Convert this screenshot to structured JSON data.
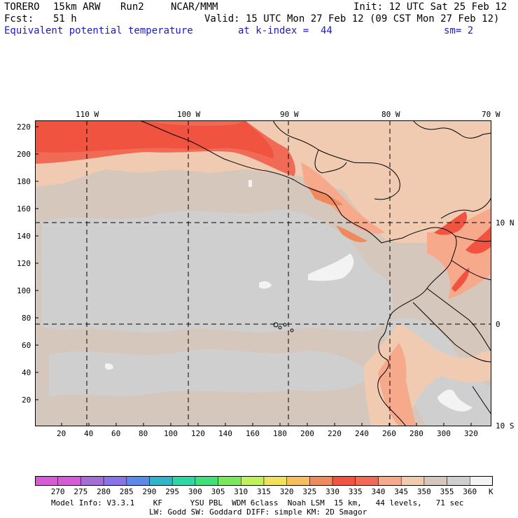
{
  "header": {
    "model": "TORERO",
    "resolution": "15km ARW",
    "run": "Run2",
    "org": "NCAR/MMM",
    "init": "Init: 12 UTC Sat 25 Feb 12",
    "fcst_label": "Fcst:",
    "fcst_value": "51 h",
    "valid": "Valid: 15 UTC Mon 27 Feb 12 (09 CST Mon 27 Feb 12)",
    "field": "Equivalent potential temperature",
    "level": "at k-index =  44",
    "smoothing": "sm= 2"
  },
  "map": {
    "lon_labels": [
      "110 W",
      "100 W",
      "90 W",
      "80 W",
      "70 W"
    ],
    "lat_labels": [
      "10 N",
      "0",
      "10 S"
    ],
    "x_ticks": [
      "20",
      "40",
      "60",
      "80",
      "100",
      "120",
      "140",
      "160",
      "180",
      "200",
      "220",
      "240",
      "260",
      "280",
      "300",
      "320"
    ],
    "y_ticks": [
      "220",
      "200",
      "180",
      "160",
      "140",
      "120",
      "100",
      "80",
      "60",
      "40",
      "20"
    ],
    "x_range": [
      0,
      333
    ],
    "y_range": [
      0,
      223
    ],
    "field_colors": {
      "c325": "#f08a5c",
      "c330": "#f0533f",
      "c335": "#f06a55",
      "c340": "#f7a98c",
      "c345": "#f0cbb2",
      "c350": "#d6c7bd",
      "c355": "#cfcfcf",
      "c360": "#f3f3f3"
    }
  },
  "colorbar": {
    "values": [
      "270",
      "275",
      "280",
      "285",
      "290",
      "295",
      "300",
      "305",
      "310",
      "315",
      "320",
      "325",
      "330",
      "335",
      "340",
      "345",
      "350",
      "355",
      "360"
    ],
    "unit": "K",
    "colors": [
      "#d65bd6",
      "#a56ed6",
      "#8a73e8",
      "#5b8ae8",
      "#2fb5c7",
      "#2fd6a5",
      "#3fe07a",
      "#7ae85b",
      "#c2f05b",
      "#f0e35b",
      "#f5c05b",
      "#f08a5c",
      "#f0533f",
      "#f06a55",
      "#f7a98c",
      "#f0cbb2",
      "#d6c7bd",
      "#cfcfcf",
      "#f3f3f3"
    ]
  },
  "footer": {
    "line1": "Model Info: V3.3.1    KF      YSU PBL  WDM 6class  Noah LSM  15 km,   44 levels,   71 sec",
    "line2": "LW: Godd SW: Goddard DIFF: simple KM: 2D Smagor"
  }
}
